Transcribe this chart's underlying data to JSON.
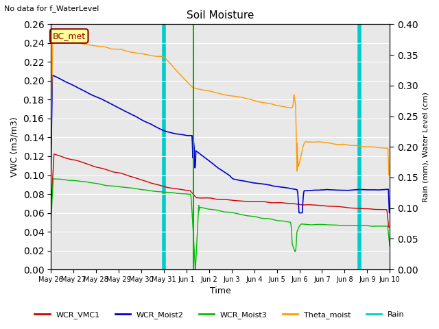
{
  "title": "Soil Moisture",
  "top_left_note": "No data for f_WaterLevel",
  "ylabel_left": "VWC (m3/m3)",
  "ylabel_right": "Rain (mm), Water Level (cm)",
  "xlabel": "Time",
  "ylim_left": [
    0.0,
    0.26
  ],
  "ylim_right": [
    0.0,
    0.4
  ],
  "yticks_left": [
    0.0,
    0.02,
    0.04,
    0.06,
    0.08,
    0.1,
    0.12,
    0.14,
    0.16,
    0.18,
    0.2,
    0.22,
    0.24,
    0.26
  ],
  "yticks_right": [
    0.0,
    0.05,
    0.1,
    0.15,
    0.2,
    0.25,
    0.3,
    0.35,
    0.4
  ],
  "fig_bg": "#ffffff",
  "axes_bg": "#e8e8e8",
  "grid_color": "#ffffff",
  "annotation_box_text": "BC_met",
  "annotation_box_color": "#ffff99",
  "annotation_box_edge_color": "#8b0000",
  "annotation_text_color": "#8b0000",
  "colors": {
    "WCR_VMC1": "#cc0000",
    "WCR_Moist2": "#0000cc",
    "WCR_Moist3": "#00bb00",
    "Theta_moist": "#ff9900",
    "Rain": "#00cccc"
  },
  "rain_vlines": [
    5.0,
    13.65
  ],
  "green_vline": 6.3,
  "cyan_vline1": 5.0,
  "cyan_vline2": 13.65
}
